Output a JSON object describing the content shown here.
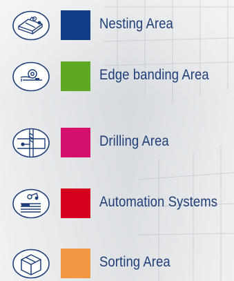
{
  "legend": {
    "items": [
      {
        "label": "Nesting Area",
        "color": "#113c86",
        "icon": "nesting-machine-icon"
      },
      {
        "label": "Edge banding Area",
        "color": "#5da923",
        "icon": "edge-banding-icon"
      },
      {
        "label": "Drilling Area",
        "color": "#d5106c",
        "icon": "drilling-icon"
      },
      {
        "label": "Automation Systems",
        "color": "#d5001e",
        "icon": "automation-icon"
      },
      {
        "label": "Sorting Area",
        "color": "#f29843",
        "icon": "sorting-box-icon"
      }
    ]
  }
}
